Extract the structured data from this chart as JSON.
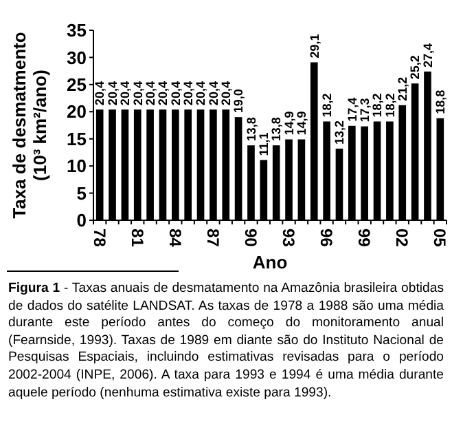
{
  "chart_data": {
    "type": "bar",
    "xlabel": "Ano",
    "ylabel": "Taxa de desmatmento\n(10³ km²/ano)",
    "categories": [
      "78",
      null,
      null,
      "81",
      null,
      null,
      "84",
      null,
      null,
      "87",
      null,
      null,
      "90",
      null,
      null,
      "93",
      null,
      null,
      "96",
      null,
      null,
      "99",
      null,
      null,
      "02",
      null,
      null,
      "05"
    ],
    "values": [
      20.4,
      20.4,
      20.4,
      20.4,
      20.4,
      20.4,
      20.4,
      20.4,
      20.4,
      20.4,
      20.4,
      19.0,
      13.8,
      11.1,
      13.8,
      14.9,
      14.9,
      29.1,
      18.2,
      13.2,
      17.4,
      17.3,
      18.2,
      18.2,
      21.2,
      25.2,
      27.4,
      18.8
    ],
    "value_labels": [
      "20,4",
      "20,4",
      "20,4",
      "20,4",
      "20,4",
      "20,4",
      "20,4",
      "20,4",
      "20,4",
      "20,4",
      "20,4",
      "19,0",
      "13,8",
      "11,1",
      "13,8",
      "14,9",
      "14,9",
      "29,1",
      "18,2",
      "13,2",
      "17,4",
      "17,3",
      "18,2",
      "18,2",
      "21,2",
      "25,2",
      "27,4",
      "18,8"
    ],
    "color": "#000000",
    "ylim": [
      0,
      35
    ],
    "yticks": [
      0,
      5,
      10,
      15,
      20,
      25,
      30,
      35
    ],
    "annotations": [
      "Figura 1",
      "- Taxas anuais de desmatamento na Amazônia brasileira obtidas de dados do satélite LANDSAT. As taxas de 1978 a 1988 são uma média durante este período antes do começo do monitoramento anual (Fearnside, 1993). Taxas de 1989 em diante são do Instituto Nacional de Pesquisas Espaciais, incluindo estimativas revisadas para o período 2002-2004 (INPE, 2006). A taxa para 1993 e 1994 é uma média durante aquele período (nenhuma estimativa existe para 1993)."
    ]
  }
}
